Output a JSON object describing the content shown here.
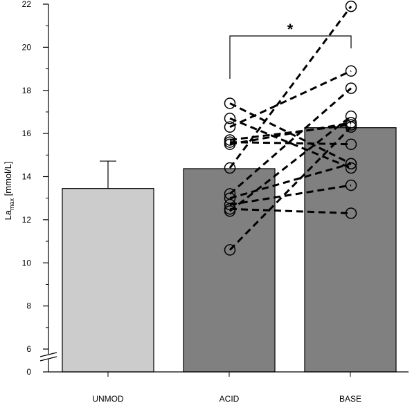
{
  "chart_data": {
    "type": "bar",
    "categories": [
      "UNMOD",
      "ACID",
      "BASE"
    ],
    "values": [
      13.45,
      14.37,
      16.27
    ],
    "error_bar": {
      "category": "UNMOD",
      "upper": 14.72
    },
    "ylabel": {
      "main": "La",
      "sub": "max",
      "unit": " [mmol/L]"
    },
    "ylim": [
      0,
      22
    ],
    "axis_break": true,
    "y_ticks": [
      "0",
      "6",
      "8",
      "10",
      "12",
      "14",
      "16",
      "18",
      "20",
      "22"
    ],
    "bar_colors": {
      "UNMOD": "#cccccc",
      "ACID": "#808080",
      "BASE": "#808080"
    },
    "significance": {
      "from": "ACID",
      "to": "BASE",
      "label": "*"
    },
    "paired_points": [
      {
        "acid": 17.4,
        "base": 14.6
      },
      {
        "acid": 16.7,
        "base": 14.4
      },
      {
        "acid": 16.3,
        "base": 18.9
      },
      {
        "acid": 15.7,
        "base": 16.4
      },
      {
        "acid": 15.6,
        "base": 15.5
      },
      {
        "acid": 15.5,
        "base": 16.5
      },
      {
        "acid": 14.4,
        "base": 21.9
      },
      {
        "acid": 13.2,
        "base": 18.1
      },
      {
        "acid": 13.0,
        "base": 14.6
      },
      {
        "acid": 12.7,
        "base": 13.6
      },
      {
        "acid": 12.5,
        "base": 12.3
      },
      {
        "acid": 12.4,
        "base": 16.8
      },
      {
        "acid": 10.6,
        "base": 16.3
      }
    ]
  }
}
